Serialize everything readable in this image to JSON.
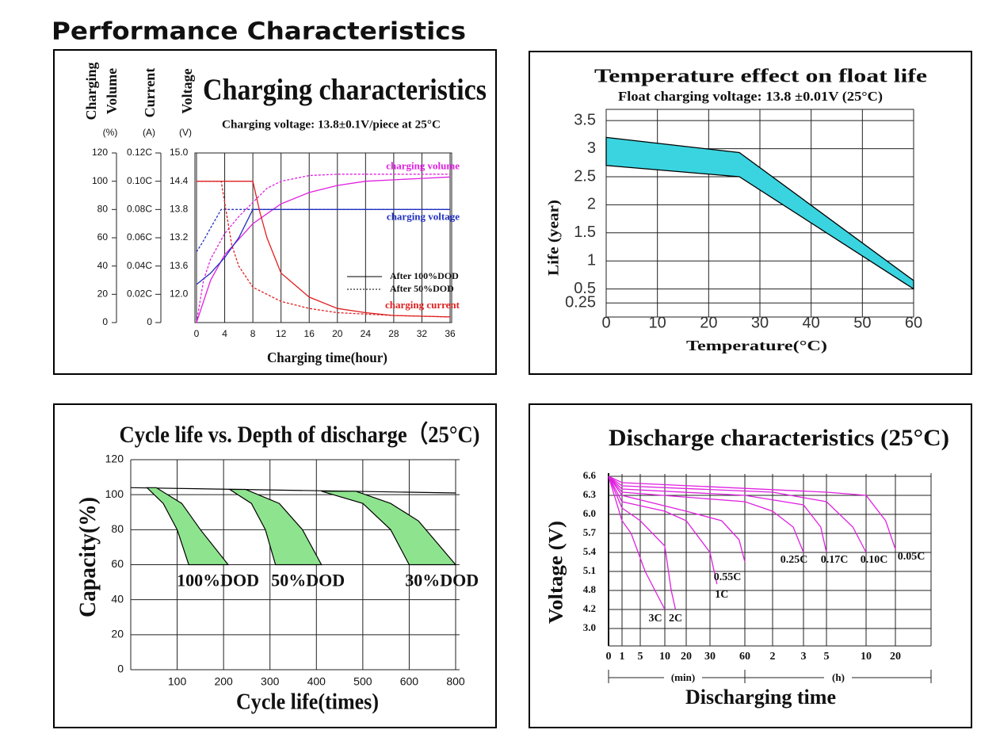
{
  "title": "Performance Characteristics",
  "chart_data": [
    {
      "type": "charging",
      "title": "Charging characteristics",
      "subtitle": "Charging voltage: 13.8±0.1V/piece at 25°C",
      "ylabel": [
        "Charging",
        "Volume"
      ],
      "yunit": "(%)",
      "y2label": "Current",
      "y2unit": "(A)",
      "y3label": "Voltage",
      "y3unit": "(V)",
      "xlabel": "Charging time(hour)",
      "xlim": [
        0,
        36
      ],
      "xticks": [
        0,
        4,
        8,
        12,
        16,
        20,
        24,
        28,
        32,
        36
      ],
      "ylim": [
        0,
        120
      ],
      "yticks": [
        0,
        20,
        40,
        60,
        80,
        100,
        120
      ],
      "y2lim": [
        0,
        0.12
      ],
      "y2ticks": [
        0,
        {
          "value": 0.02,
          "label": "0.02C"
        },
        {
          "value": 0.04,
          "label": "0.04C"
        },
        {
          "value": 0.06,
          "label": "0.06C"
        },
        {
          "value": 0.08,
          "label": "0.08C"
        },
        {
          "value": 0.1,
          "label": "0.10C"
        },
        {
          "value": 0.12,
          "label": "0.12C"
        }
      ],
      "y3labels": [
        "12.0",
        "13.6",
        "13.2",
        "13.8",
        "14.4",
        "15.0"
      ],
      "grid": "x",
      "legend": [
        {
          "label": "After 100%DOD",
          "dash": false
        },
        {
          "label": "After 50%DOD",
          "dash": true
        }
      ],
      "series": [
        {
          "name": "charging volume",
          "color": "#e020e0",
          "dash": false,
          "x": [
            0,
            2,
            4,
            8,
            12,
            16,
            20,
            24,
            28,
            32,
            36
          ],
          "values": [
            0,
            30,
            48,
            70,
            84,
            92,
            97,
            100,
            101,
            102,
            103
          ]
        },
        {
          "color": "#e020e0",
          "dash": true,
          "x": [
            0,
            1,
            2,
            4,
            6,
            8,
            10,
            12,
            16,
            20,
            24,
            36
          ],
          "values": [
            0,
            30,
            45,
            63,
            75,
            85,
            95,
            100,
            104,
            105,
            105,
            105
          ]
        },
        {
          "name": "charging voltage",
          "color": "#2030c0",
          "dash": false,
          "x": [
            0,
            2,
            4,
            6,
            8,
            12,
            36
          ],
          "values": [
            27,
            35,
            46,
            60,
            80,
            80,
            80
          ]
        },
        {
          "color": "#2030c0",
          "dash": true,
          "x": [
            0,
            1,
            2,
            3.5,
            8,
            36
          ],
          "values": [
            50,
            58,
            67,
            80,
            80,
            80
          ]
        },
        {
          "name": "charging current",
          "color": "#e02020",
          "dash": false,
          "x": [
            0,
            8,
            9,
            10,
            12,
            16,
            20,
            24,
            28,
            36
          ],
          "values": [
            100,
            100,
            78,
            60,
            35,
            18,
            10,
            7,
            5,
            4
          ]
        },
        {
          "color": "#e02020",
          "dash": true,
          "x": [
            0,
            3.5,
            4.5,
            5,
            6,
            8,
            12,
            16,
            20,
            28,
            36
          ],
          "values": [
            100,
            100,
            70,
            55,
            40,
            25,
            15,
            10,
            7,
            5,
            4
          ]
        }
      ]
    },
    {
      "type": "band",
      "title": "Temperature effect on float life",
      "subtitle": "Float charging voltage: 13.8 ±0.01V (25°C)",
      "ylabel": "Life (year)",
      "xlabel": "Temperature(°C)",
      "xlim": [
        0,
        60
      ],
      "xticks": [
        0,
        10,
        20,
        30,
        40,
        50,
        60
      ],
      "ylim": [
        0,
        3.7
      ],
      "yticks": [
        0.25,
        0.5,
        1,
        1.5,
        2,
        2.5,
        3,
        3.5
      ],
      "grid": true,
      "color": "#3ad4e0",
      "x": [
        0,
        26,
        60
      ],
      "upper": [
        3.2,
        2.93,
        0.65
      ],
      "lower": [
        2.7,
        2.5,
        0.5
      ]
    },
    {
      "type": "dod",
      "title": "Cycle life vs. Depth of discharge（25°C)",
      "ylabel": "Capacity(%)",
      "xlabel": "Cycle life(times)",
      "xlim": [
        0,
        800
      ],
      "xticks": [
        100,
        200,
        300,
        400,
        500,
        600,
        800
      ],
      "ylim": [
        0,
        120
      ],
      "yticks": [
        0,
        20,
        40,
        60,
        80,
        100,
        120
      ],
      "grid": true,
      "color": "#8ee48e",
      "line": {
        "x": [
          0,
          800
        ],
        "values": [
          104,
          101
        ]
      },
      "bands": [
        {
          "name": "100%DOD",
          "left": {
            "x": [
              35,
              70,
              100,
              125
            ],
            "values": [
              104,
              95,
              80,
              60
            ]
          },
          "right": {
            "x": [
              55,
              110,
              150,
              210
            ],
            "values": [
              104,
              95,
              80,
              60
            ]
          }
        },
        {
          "name": "50%DOD",
          "left": {
            "x": [
              213,
              260,
              290,
              312
            ],
            "values": [
              103,
              95,
              80,
              60
            ]
          },
          "right": {
            "x": [
              247,
              320,
              370,
              411
            ],
            "values": [
              103,
              95,
              80,
              60
            ]
          }
        },
        {
          "name": "30%DOD",
          "left": {
            "x": [
              411,
              500,
              560,
              600
            ],
            "values": [
              102,
              95,
              80,
              60
            ]
          },
          "right": {
            "x": [
              485,
              560,
              640,
              800
            ],
            "values": [
              102,
              95,
              85,
              60
            ]
          }
        }
      ]
    },
    {
      "type": "discharge",
      "title": "Discharge characteristics (25°C)",
      "ylabel": "Voltage (V)",
      "xlabel": "Discharging time",
      "xunits": [
        "(min)",
        "(h)"
      ],
      "xlim": [
        0,
        1200
      ],
      "xticks": [
        0,
        1,
        5,
        10,
        20,
        30,
        60,
        {
          "value": 120,
          "label": "2"
        },
        {
          "value": 180,
          "label": "3"
        },
        {
          "value": 300,
          "label": "5"
        },
        {
          "value": 600,
          "label": "10"
        },
        {
          "value": 1200,
          "label": "20"
        }
      ],
      "ylim": [
        3,
        6.6
      ],
      "yticks": [
        {
          "value": 3,
          "label": "3.0"
        },
        4.2,
        4.8,
        5.1,
        5.4,
        5.7,
        {
          "value": 6,
          "label": "6.0"
        },
        6.3,
        6.6
      ],
      "grid": true,
      "series": [
        {
          "name": "3C",
          "color": "#e020e0",
          "x": [
            0,
            1,
            3,
            6,
            9,
            10
          ],
          "values": [
            6.6,
            5.9,
            5.7,
            5.1,
            4.5,
            4.2
          ]
        },
        {
          "name": "2C",
          "color": "#e020e0",
          "x": [
            0,
            1,
            5,
            10,
            13,
            15
          ],
          "values": [
            6.6,
            6.1,
            5.9,
            5.5,
            4.8,
            4.2
          ]
        },
        {
          "name": "1C",
          "color": "#e020e0",
          "x": [
            0,
            1,
            10,
            20,
            30,
            36
          ],
          "values": [
            6.6,
            6.2,
            6.05,
            5.9,
            5.4,
            4.9
          ]
        },
        {
          "name": "0.55C",
          "color": "#e020e0",
          "x": [
            0,
            1,
            20,
            40,
            55,
            60
          ],
          "values": [
            6.6,
            6.3,
            6.05,
            5.9,
            5.6,
            5.25
          ]
        },
        {
          "name": "0.25C",
          "color": "#e020e0",
          "x": [
            0,
            1,
            60,
            120,
            160,
            180
          ],
          "values": [
            6.6,
            6.35,
            6.2,
            6.05,
            5.8,
            5.4
          ]
        },
        {
          "name": "0.17C",
          "color": "#e020e0",
          "x": [
            0,
            1,
            60,
            180,
            270,
            300
          ],
          "values": [
            6.6,
            6.4,
            6.3,
            6.15,
            5.8,
            5.4
          ]
        },
        {
          "name": "0.10C",
          "color": "#e020e0",
          "x": [
            0,
            1,
            120,
            300,
            500,
            600
          ],
          "values": [
            6.6,
            6.45,
            6.35,
            6.2,
            5.8,
            5.4
          ]
        },
        {
          "name": "0.05C",
          "color": "#e020e0",
          "x": [
            0,
            1,
            300,
            600,
            1000,
            1200
          ],
          "values": [
            6.6,
            6.5,
            6.35,
            6.3,
            5.9,
            5.45
          ]
        }
      ]
    }
  ]
}
